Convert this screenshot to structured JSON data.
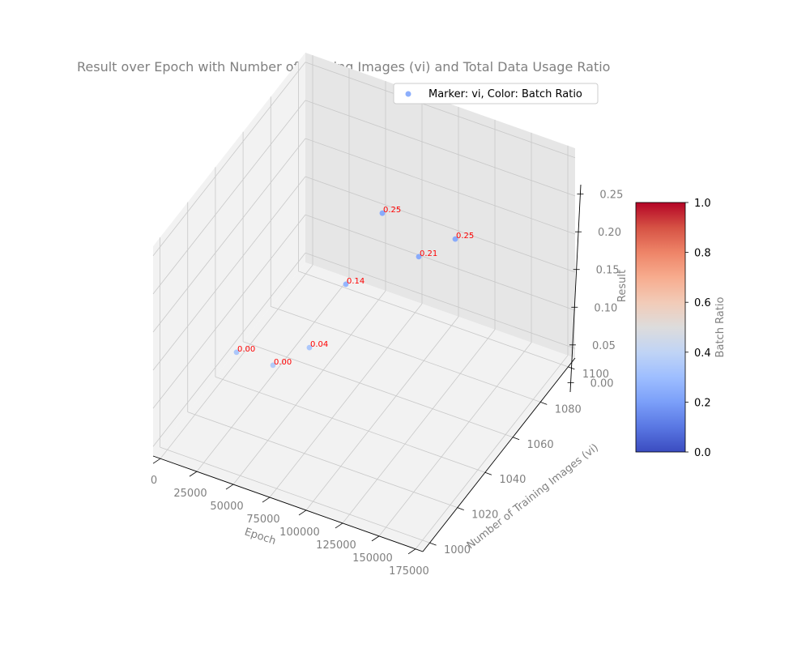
{
  "chart_data": {
    "type": "scatter",
    "title": "Result over Epoch with Number of Training Images (vi) and Total Data Usage Ratio",
    "xlabel": "Epoch",
    "ylabel": "Number of Training Images (vi)",
    "zlabel": "Result",
    "xlim": [
      -5000,
      180000
    ],
    "ylim": [
      995,
      1105
    ],
    "zlim": [
      -0.0125,
      0.2625
    ],
    "x_ticks": [
      0,
      25000,
      50000,
      75000,
      100000,
      125000,
      150000,
      175000
    ],
    "x_tick_labels": [
      "0",
      "25000",
      "50000",
      "75000",
      "100000",
      "125000",
      "150000",
      "175000"
    ],
    "y_ticks": [
      1000,
      1020,
      1040,
      1060,
      1080,
      1100
    ],
    "y_tick_labels": [
      "1000",
      "1020",
      "1040",
      "1060",
      "1080",
      "1100"
    ],
    "z_ticks": [
      0.0,
      0.05,
      0.1,
      0.15,
      0.2,
      0.25
    ],
    "z_tick_labels": [
      "0.00",
      "0.05",
      "0.10",
      "0.15",
      "0.20",
      "0.25"
    ],
    "grid": true,
    "legend": {
      "label": "Marker: vi, Color: Batch Ratio",
      "placement": "top-right"
    },
    "colorbar": {
      "label": "Batch Ratio",
      "range": [
        0,
        1
      ],
      "ticks": [
        0.0,
        0.2,
        0.4,
        0.6,
        0.8,
        1.0
      ],
      "tick_labels": [
        "0.0",
        "0.2",
        "0.4",
        "0.6",
        "0.8",
        "1.0"
      ],
      "colormap": "coolwarm",
      "colormap_stops": [
        "#3b4cc0",
        "#5977e3",
        "#7b9ff9",
        "#9ebeff",
        "#c0d4f5",
        "#dddcdc",
        "#f2cbb7",
        "#f7ac8e",
        "#ee8468",
        "#d65244",
        "#b40426"
      ]
    },
    "points": [
      {
        "x": 0,
        "y": 1050,
        "z": 0.0,
        "batch_ratio": 0.34,
        "label": "0.00"
      },
      {
        "x": 25000,
        "y": 1050,
        "z": 0.0,
        "batch_ratio": 0.36,
        "label": "0.00"
      },
      {
        "x": 50000,
        "y": 1050,
        "z": 0.04,
        "batch_ratio": 0.34,
        "label": "0.04"
      },
      {
        "x": 75000,
        "y": 1050,
        "z": 0.14,
        "batch_ratio": 0.27,
        "label": "0.14"
      },
      {
        "x": 100000,
        "y": 1050,
        "z": 0.25,
        "batch_ratio": 0.24,
        "label": "0.25"
      },
      {
        "x": 125000,
        "y": 1050,
        "z": 0.21,
        "batch_ratio": 0.24,
        "label": "0.21"
      },
      {
        "x": 150000,
        "y": 1050,
        "z": 0.25,
        "batch_ratio": 0.24,
        "label": "0.25"
      }
    ]
  }
}
